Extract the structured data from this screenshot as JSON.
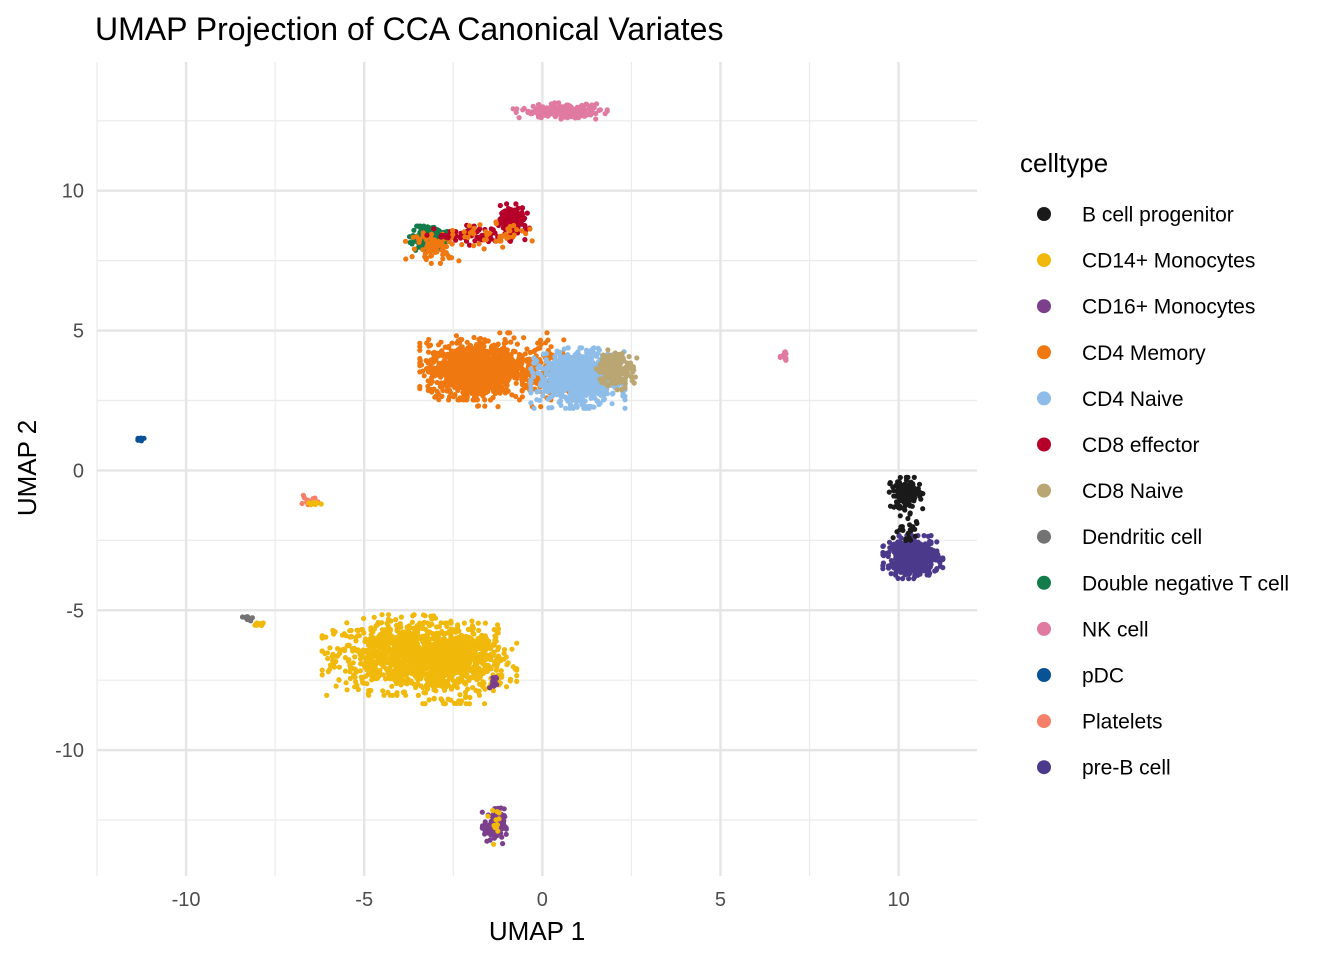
{
  "chart_data": {
    "type": "scatter",
    "title": "UMAP Projection of CCA Canonical Variates",
    "xlabel": "UMAP 1",
    "ylabel": "UMAP 2",
    "xlim": [
      -12.5,
      12.2
    ],
    "ylim": [
      -14.5,
      14.6
    ],
    "x_ticks": [
      -10,
      -5,
      0,
      5,
      10
    ],
    "x_tick_labels": [
      "-10",
      "-5",
      "0",
      "5",
      "10"
    ],
    "y_ticks": [
      -10,
      -5,
      0,
      5,
      10
    ],
    "y_tick_labels": [
      "-10",
      "-5",
      "0",
      "5",
      "10"
    ],
    "grid": true,
    "legend": {
      "title": "celltype",
      "position": "right",
      "entries": [
        {
          "label": "B cell progenitor",
          "color": "#1a1a1a"
        },
        {
          "label": "CD14+ Monocytes",
          "color": "#f0b90b"
        },
        {
          "label": "CD16+ Monocytes",
          "color": "#7b3f8c"
        },
        {
          "label": "CD4 Memory",
          "color": "#f07810"
        },
        {
          "label": "CD4 Naive",
          "color": "#8fbde9"
        },
        {
          "label": "CD8 effector",
          "color": "#b5002a"
        },
        {
          "label": "CD8 Naive",
          "color": "#b9a673"
        },
        {
          "label": "Dendritic cell",
          "color": "#737373"
        },
        {
          "label": "Double negative T cell",
          "color": "#127d4a"
        },
        {
          "label": "NK cell",
          "color": "#e17aa0"
        },
        {
          "label": "pDC",
          "color": "#0a5296"
        },
        {
          "label": "Platelets",
          "color": "#f4806a"
        },
        {
          "label": "pre-B cell",
          "color": "#4b3a8c"
        }
      ]
    },
    "clusters": [
      {
        "series": "CD14+ Monocytes",
        "center": [
          -3.9,
          -6.6
        ],
        "spread": [
          0.95,
          0.6
        ],
        "n": 900
      },
      {
        "series": "CD14+ Monocytes",
        "center": [
          -2.4,
          -6.9
        ],
        "spread": [
          0.7,
          0.6
        ],
        "n": 500
      },
      {
        "series": "CD14+ Monocytes",
        "center": [
          -1.9,
          -6.2
        ],
        "spread": [
          0.3,
          0.35
        ],
        "n": 80
      },
      {
        "series": "CD16+ Monocytes",
        "center": [
          -1.35,
          -12.7
        ],
        "spread": [
          0.14,
          0.3
        ],
        "n": 110
      },
      {
        "series": "CD16+ Monocytes",
        "center": [
          -1.35,
          -7.6
        ],
        "spread": [
          0.08,
          0.12
        ],
        "n": 10
      },
      {
        "series": "CD14+ Monocytes",
        "center": [
          -1.3,
          -12.5
        ],
        "spread": [
          0.12,
          0.4
        ],
        "n": 12
      },
      {
        "series": "CD4 Memory",
        "center": [
          -2.0,
          3.6
        ],
        "spread": [
          0.6,
          0.45
        ],
        "n": 1000
      },
      {
        "series": "CD4 Memory",
        "center": [
          -0.6,
          3.6
        ],
        "spread": [
          0.9,
          0.55
        ],
        "n": 350
      },
      {
        "series": "CD4 Naive",
        "center": [
          1.0,
          3.3
        ],
        "spread": [
          0.55,
          0.45
        ],
        "n": 800
      },
      {
        "series": "CD8 Naive",
        "center": [
          2.05,
          3.6
        ],
        "spread": [
          0.25,
          0.3
        ],
        "n": 160
      },
      {
        "series": "Double negative T cell",
        "center": [
          -3.2,
          8.3
        ],
        "spread": [
          0.22,
          0.18
        ],
        "n": 320
      },
      {
        "series": "CD4 Memory",
        "center": [
          -3.0,
          8.0
        ],
        "spread": [
          0.35,
          0.25
        ],
        "n": 70
      },
      {
        "series": "CD8 effector",
        "center": [
          -0.8,
          9.0
        ],
        "spread": [
          0.18,
          0.22
        ],
        "n": 160
      },
      {
        "series": "CD8 effector",
        "center": [
          -1.8,
          8.4
        ],
        "spread": [
          0.6,
          0.15
        ],
        "n": 80
      },
      {
        "series": "CD4 Memory",
        "center": [
          -1.2,
          8.4
        ],
        "spread": [
          0.55,
          0.2
        ],
        "n": 45
      },
      {
        "series": "NK cell",
        "center": [
          0.5,
          12.85
        ],
        "spread": [
          0.55,
          0.12
        ],
        "n": 200
      },
      {
        "series": "NK cell",
        "center": [
          6.8,
          4.0
        ],
        "spread": [
          0.05,
          0.1
        ],
        "n": 14
      },
      {
        "series": "B cell progenitor",
        "center": [
          10.2,
          -0.85
        ],
        "spread": [
          0.2,
          0.25
        ],
        "n": 160
      },
      {
        "series": "pre-B cell",
        "center": [
          10.4,
          -3.1
        ],
        "spread": [
          0.35,
          0.32
        ],
        "n": 480
      },
      {
        "series": "B cell progenitor",
        "center": [
          10.2,
          -2.0
        ],
        "spread": [
          0.2,
          0.3
        ],
        "n": 25
      },
      {
        "series": "pDC",
        "center": [
          -11.3,
          1.1
        ],
        "spread": [
          0.05,
          0.04
        ],
        "n": 12
      },
      {
        "series": "Platelets",
        "center": [
          -6.55,
          -1.05
        ],
        "spread": [
          0.14,
          0.1
        ],
        "n": 12
      },
      {
        "series": "CD14+ Monocytes",
        "center": [
          -6.4,
          -1.2
        ],
        "spread": [
          0.08,
          0.06
        ],
        "n": 8
      },
      {
        "series": "Dendritic cell",
        "center": [
          -8.3,
          -5.3
        ],
        "spread": [
          0.08,
          0.06
        ],
        "n": 12
      },
      {
        "series": "CD14+ Monocytes",
        "center": [
          -8.0,
          -5.5
        ],
        "spread": [
          0.1,
          0.05
        ],
        "n": 10
      }
    ]
  }
}
